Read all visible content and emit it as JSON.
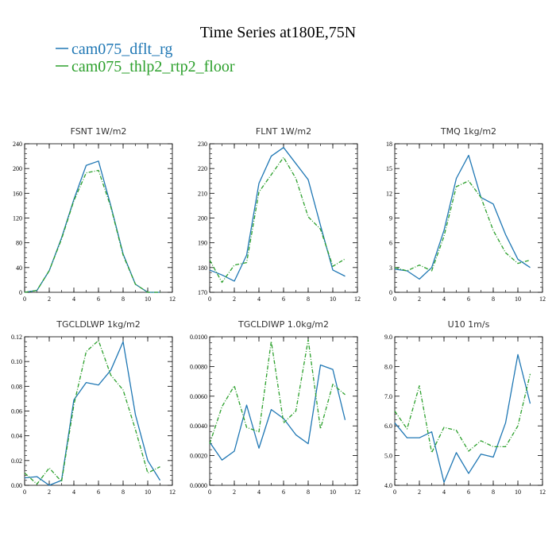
{
  "figure": {
    "title": "Time Series at180E,75N",
    "legend": [
      {
        "label": "cam075_dflt_rg",
        "color": "#1f77b4",
        "dash": "solid"
      },
      {
        "label": "cam075_thlp2_rtp2_floor",
        "color": "#2ca02c",
        "dash": "dashed"
      }
    ]
  },
  "chart_data": [
    {
      "type": "line",
      "title": "FSNT   1W/m2",
      "x": [
        0,
        1,
        2,
        3,
        4,
        5,
        6,
        7,
        8,
        9,
        10,
        11
      ],
      "xlim": [
        0,
        12
      ],
      "xticks": [
        0,
        2,
        4,
        6,
        8,
        10,
        12
      ],
      "ylim": [
        0,
        240
      ],
      "yticks": [
        "0",
        "40",
        "80",
        "120",
        "160",
        "200",
        "240"
      ],
      "series": [
        {
          "name": "cam075_dflt_rg",
          "values": [
            0,
            3,
            35,
            88,
            150,
            205,
            212,
            140,
            62,
            13,
            0,
            0
          ]
        },
        {
          "name": "cam075_thlp2_rtp2_floor",
          "values": [
            0,
            3,
            35,
            86,
            148,
            193,
            197,
            138,
            60,
            13,
            0,
            0
          ]
        }
      ]
    },
    {
      "type": "line",
      "title": "FLNT   1W/m2",
      "x": [
        0,
        1,
        2,
        3,
        4,
        5,
        6,
        7,
        8,
        9,
        10,
        11
      ],
      "xlim": [
        0,
        12
      ],
      "xticks": [
        0,
        2,
        4,
        6,
        8,
        10,
        12
      ],
      "ylim": [
        170,
        230
      ],
      "yticks": [
        "170",
        "180",
        "190",
        "200",
        "210",
        "220",
        "230"
      ],
      "series": [
        {
          "name": "cam075_dflt_rg",
          "values": [
            179,
            177,
            174.5,
            185,
            214,
            225,
            228.5,
            222,
            215.5,
            197,
            179,
            176.5
          ]
        },
        {
          "name": "cam075_thlp2_rtp2_floor",
          "values": [
            183,
            174,
            181,
            182,
            210.5,
            217.5,
            224.5,
            216,
            200.5,
            195.5,
            180.5,
            183.5
          ]
        }
      ]
    },
    {
      "type": "line",
      "title": "TMQ   1kg/m2",
      "x": [
        0,
        1,
        2,
        3,
        4,
        5,
        6,
        7,
        8,
        9,
        10,
        11
      ],
      "xlim": [
        0,
        12
      ],
      "xticks": [
        0,
        2,
        4,
        6,
        8,
        10,
        12
      ],
      "ylim": [
        0,
        18
      ],
      "yticks": [
        "0",
        "3",
        "6",
        "9",
        "12",
        "15",
        "18"
      ],
      "series": [
        {
          "name": "cam075_dflt_rg",
          "values": [
            2.8,
            2.6,
            1.6,
            3,
            7.5,
            13.8,
            16.6,
            11.5,
            10.7,
            7,
            4,
            3
          ]
        },
        {
          "name": "cam075_thlp2_rtp2_floor",
          "values": [
            3,
            2.6,
            3.3,
            2.6,
            6.8,
            12.8,
            13.5,
            11.5,
            7.5,
            4.8,
            3.5,
            3.9
          ]
        }
      ]
    },
    {
      "type": "line",
      "title": "TGCLDLWP   1kg/m2",
      "x": [
        0,
        1,
        2,
        3,
        4,
        5,
        6,
        7,
        8,
        9,
        10,
        11
      ],
      "xlim": [
        0,
        12
      ],
      "xticks": [
        0,
        2,
        4,
        6,
        8,
        10,
        12
      ],
      "ylim": [
        0,
        0.12
      ],
      "yticks": [
        "0.00",
        "0.02",
        "0.04",
        "0.06",
        "0.08",
        "0.10",
        "0.12"
      ],
      "series": [
        {
          "name": "cam075_dflt_rg",
          "values": [
            0.006,
            0.007,
            0,
            0.004,
            0.069,
            0.083,
            0.081,
            0.093,
            0.116,
            0.057,
            0.02,
            0.004
          ]
        },
        {
          "name": "cam075_thlp2_rtp2_floor",
          "values": [
            0.01,
            0.001,
            0.014,
            0.003,
            0.065,
            0.108,
            0.117,
            0.089,
            0.077,
            0.045,
            0.01,
            0.015
          ]
        }
      ]
    },
    {
      "type": "line",
      "title": "TGCLDIWP   1.0kg/m2",
      "x": [
        0,
        1,
        2,
        3,
        4,
        5,
        6,
        7,
        8,
        9,
        10,
        11
      ],
      "xlim": [
        0,
        12
      ],
      "xticks": [
        0,
        2,
        4,
        6,
        8,
        10,
        12
      ],
      "ylim": [
        0,
        0.01
      ],
      "yticks": [
        "0.0000",
        "0.0020",
        "0.0040",
        "0.0060",
        "0.0080",
        "0.0100"
      ],
      "series": [
        {
          "name": "cam075_dflt_rg",
          "values": [
            0.0029,
            0.0017,
            0.0023,
            0.0054,
            0.0025,
            0.0051,
            0.0045,
            0.0034,
            0.0028,
            0.0081,
            0.0078,
            0.0044
          ]
        },
        {
          "name": "cam075_thlp2_rtp2_floor",
          "values": [
            0.0028,
            0.0053,
            0.0067,
            0.0039,
            0.0036,
            0.0097,
            0.0042,
            0.005,
            0.0098,
            0.0038,
            0.0068,
            0.0061
          ]
        }
      ]
    },
    {
      "type": "line",
      "title": "U10   1m/s",
      "x": [
        0,
        1,
        2,
        3,
        4,
        5,
        6,
        7,
        8,
        9,
        10,
        11
      ],
      "xlim": [
        0,
        12
      ],
      "xticks": [
        0,
        2,
        4,
        6,
        8,
        10,
        12
      ],
      "ylim": [
        4,
        9
      ],
      "yticks": [
        "4.0",
        "5.0",
        "6.0",
        "7.0",
        "8.0",
        "9.0"
      ],
      "series": [
        {
          "name": "cam075_dflt_rg",
          "values": [
            6.1,
            5.6,
            5.6,
            5.8,
            4.1,
            5.1,
            4.4,
            5.05,
            4.95,
            6.1,
            8.4,
            6.75
          ]
        },
        {
          "name": "cam075_thlp2_rtp2_floor",
          "values": [
            6.5,
            5.9,
            7.35,
            5.1,
            5.95,
            5.85,
            5.15,
            5.5,
            5.3,
            5.3,
            6,
            7.75
          ]
        }
      ]
    }
  ]
}
